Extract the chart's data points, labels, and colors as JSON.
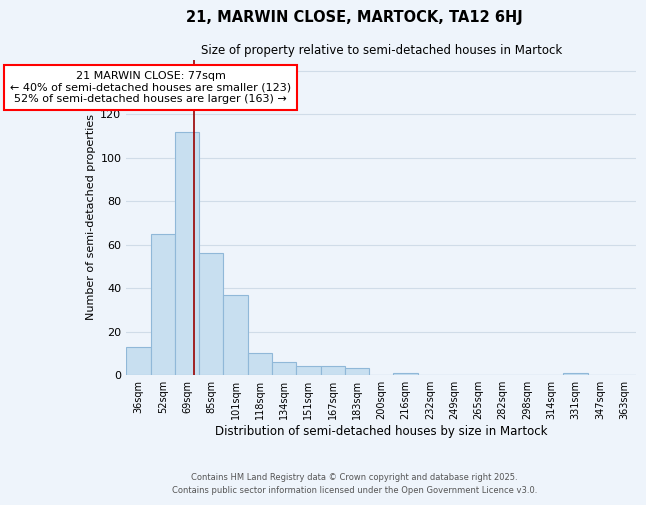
{
  "title": "21, MARWIN CLOSE, MARTOCK, TA12 6HJ",
  "subtitle": "Size of property relative to semi-detached houses in Martock",
  "xlabel": "Distribution of semi-detached houses by size in Martock",
  "ylabel": "Number of semi-detached properties",
  "bar_color": "#c8dff0",
  "bar_edge_color": "#90b8d8",
  "bin_labels": [
    "36sqm",
    "52sqm",
    "69sqm",
    "85sqm",
    "101sqm",
    "118sqm",
    "134sqm",
    "151sqm",
    "167sqm",
    "183sqm",
    "200sqm",
    "216sqm",
    "232sqm",
    "249sqm",
    "265sqm",
    "282sqm",
    "298sqm",
    "314sqm",
    "331sqm",
    "347sqm",
    "363sqm"
  ],
  "bin_values": [
    13,
    65,
    112,
    56,
    37,
    10,
    6,
    4,
    4,
    3,
    0,
    1,
    0,
    0,
    0,
    0,
    0,
    0,
    1,
    0,
    0
  ],
  "marker_bin_index": 2.3,
  "ylim": [
    0,
    145
  ],
  "yticks": [
    0,
    20,
    40,
    60,
    80,
    100,
    120,
    140
  ],
  "annotation_title": "21 MARWIN CLOSE: 77sqm",
  "annotation_line1": "← 40% of semi-detached houses are smaller (123)",
  "annotation_line2": "52% of semi-detached houses are larger (163) →",
  "footer1": "Contains HM Land Registry data © Crown copyright and database right 2025.",
  "footer2": "Contains public sector information licensed under the Open Government Licence v3.0.",
  "bg_color": "#eef4fb",
  "grid_color": "#d0dce8"
}
